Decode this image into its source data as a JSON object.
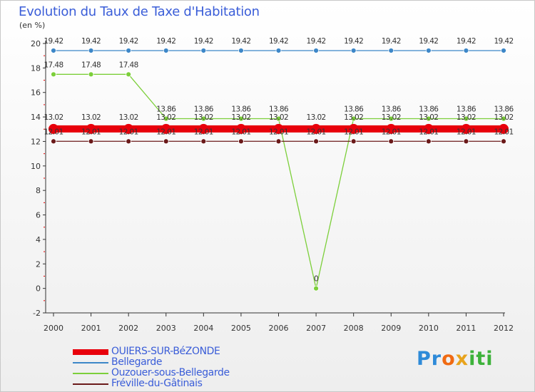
{
  "chart_data": {
    "type": "line",
    "title": "Evolution du Taux de Taxe d'Habitation",
    "ylabel": "(en %)",
    "xlabel": "",
    "ylim": [
      -2,
      20
    ],
    "yticks": [
      -2,
      0,
      2,
      4,
      6,
      8,
      10,
      12,
      14,
      16,
      18,
      20
    ],
    "ytick_labels": [
      "-2",
      "0",
      "2",
      "4",
      "6",
      "8",
      "10",
      "12",
      "14",
      "16",
      "18",
      "20"
    ],
    "categories": [
      "2000",
      "2001",
      "2002",
      "2003",
      "2004",
      "2005",
      "2006",
      "2007",
      "2008",
      "2009",
      "2010",
      "2011",
      "2012"
    ],
    "series": [
      {
        "name": "OUIERS-SUR-BéZONDE",
        "color": "#e8000b",
        "values": [
          13.02,
          13.02,
          13.02,
          13.02,
          13.02,
          13.02,
          13.02,
          13.02,
          13.02,
          13.02,
          13.02,
          13.02,
          13.02
        ],
        "labels": [
          "13.02",
          "13.02",
          "13.02",
          "13.02",
          "13.02",
          "13.02",
          "13.02",
          "13.02",
          "13.02",
          "13.02",
          "13.02",
          "13.02",
          "13.02"
        ]
      },
      {
        "name": "Bellegarde",
        "color": "#3d87c8",
        "values": [
          19.42,
          19.42,
          19.42,
          19.42,
          19.42,
          19.42,
          19.42,
          19.42,
          19.42,
          19.42,
          19.42,
          19.42,
          19.42
        ],
        "labels": [
          "19.42",
          "19.42",
          "19.42",
          "19.42",
          "19.42",
          "19.42",
          "19.42",
          "19.42",
          "19.42",
          "19.42",
          "19.42",
          "19.42",
          "19.42"
        ]
      },
      {
        "name": "Ouzouer-sous-Bellegarde",
        "color": "#7ccf3a",
        "values": [
          17.48,
          17.48,
          17.48,
          13.86,
          13.86,
          13.86,
          13.86,
          0,
          13.86,
          13.86,
          13.86,
          13.86,
          13.86
        ],
        "labels": [
          "17.48",
          "17.48",
          "17.48",
          "13.86",
          "13.86",
          "13.86",
          "13.86",
          "0",
          "13.86",
          "13.86",
          "13.86",
          "13.86",
          "13.86"
        ]
      },
      {
        "name": "Fréville-du-Gâtinais",
        "color": "#6b1a1a",
        "values": [
          12.01,
          12.01,
          12.01,
          12.01,
          12.01,
          12.01,
          12.01,
          12.01,
          12.01,
          12.01,
          12.01,
          12.01,
          12.01
        ],
        "labels": [
          "12.01",
          "12.01",
          "12.01",
          "12.01",
          "12.01",
          "12.01",
          "12.01",
          "12.01",
          "12.01",
          "12.01",
          "12.01",
          "12.01",
          "12.01"
        ]
      }
    ],
    "legend_position": "bottom-left",
    "grid": false
  },
  "logo": {
    "parts": [
      "Pr",
      "o",
      "x",
      "iti"
    ]
  }
}
